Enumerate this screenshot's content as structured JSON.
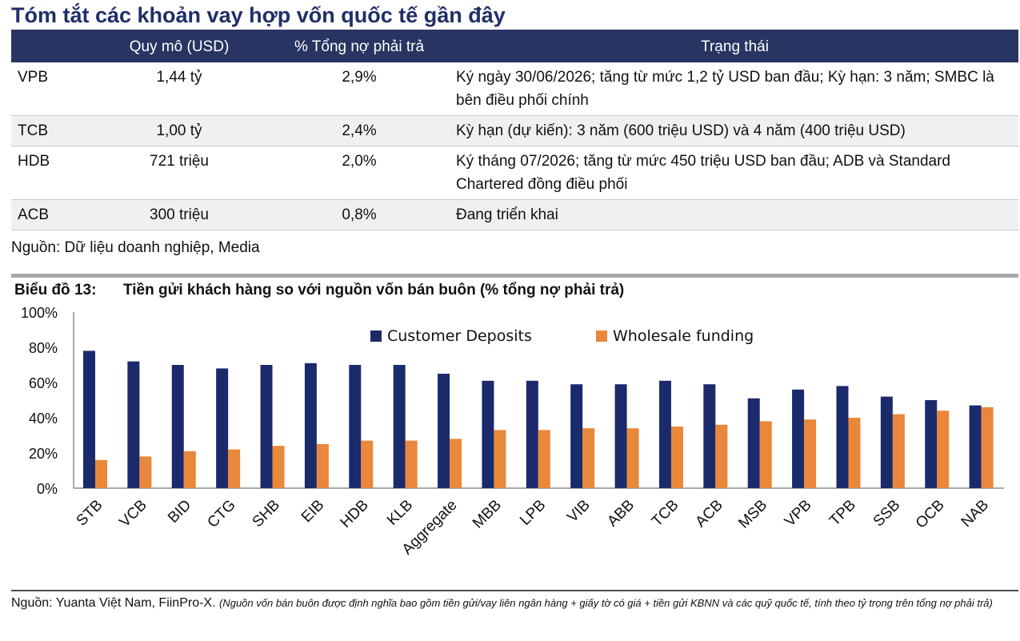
{
  "header": {
    "title": "Tóm tắt các khoản vay hợp vốn quốc tế gần đây"
  },
  "table": {
    "columns": [
      "",
      "Quy mô (USD)",
      "% Tổng nợ phải trả",
      "Trạng thái"
    ],
    "rows": [
      [
        "VPB",
        "1,44 tỷ",
        "2,9%",
        "Ký ngày 30/06/2026; tăng từ mức 1,2 tỷ USD ban đầu; Kỳ hạn: 3 năm; SMBC là bên điều phối chính"
      ],
      [
        "TCB",
        "1,00 tỷ",
        "2,4%",
        "Kỳ hạn (dự kiến): 3 năm (600 triệu USD) và 4 năm (400 triệu USD)"
      ],
      [
        "HDB",
        "721 triệu",
        "2,0%",
        "Ký tháng 07/2026; tăng từ mức 450 triệu USD ban đầu; ADB và Standard Chartered đồng điều phối"
      ],
      [
        "ACB",
        "300 triệu",
        "0,8%",
        "Đang triển khai"
      ]
    ]
  },
  "source1": "Nguồn: Dữ liệu doanh nghiệp, Media",
  "chart_title": {
    "label": "Biểu đồ 13:",
    "text": "Tiền gửi khách hàng so với nguồn vốn bán buôn (% tổng nợ phải trả)"
  },
  "chart_data": {
    "type": "bar",
    "categories": [
      "STB",
      "VCB",
      "BID",
      "CTG",
      "SHB",
      "EIB",
      "HDB",
      "KLB",
      "Aggregate",
      "MBB",
      "LPB",
      "VIB",
      "ABB",
      "TCB",
      "ACB",
      "MSB",
      "VPB",
      "TPB",
      "SSB",
      "OCB",
      "NAB"
    ],
    "series": [
      {
        "name": "Customer Deposits",
        "color": "#1b2a6b",
        "values": [
          78,
          72,
          70,
          68,
          70,
          71,
          70,
          70,
          65,
          61,
          61,
          59,
          59,
          61,
          59,
          51,
          56,
          58,
          52,
          50,
          47
        ]
      },
      {
        "name": "Wholesale funding",
        "color": "#e9873a",
        "values": [
          16,
          18,
          21,
          22,
          24,
          25,
          27,
          27,
          28,
          33,
          33,
          34,
          34,
          35,
          36,
          38,
          39,
          40,
          42,
          44,
          46
        ]
      }
    ],
    "ylim": [
      0,
      100
    ],
    "yticks": [
      "0%",
      "20%",
      "40%",
      "60%",
      "80%",
      "100%"
    ],
    "legend_position": "top-center",
    "grid": false
  },
  "source2": {
    "main": "Nguồn: Yuanta Việt Nam, FiinPro-X.",
    "note": "(Nguồn vốn bán buôn được định nghĩa bao gồm tiền gửi/vay liên ngân hàng + giấy tờ có giá + tiền gửi KBNN và các quỹ quốc tế, tính theo tỷ trọng trên tổng nợ phải trả)"
  }
}
